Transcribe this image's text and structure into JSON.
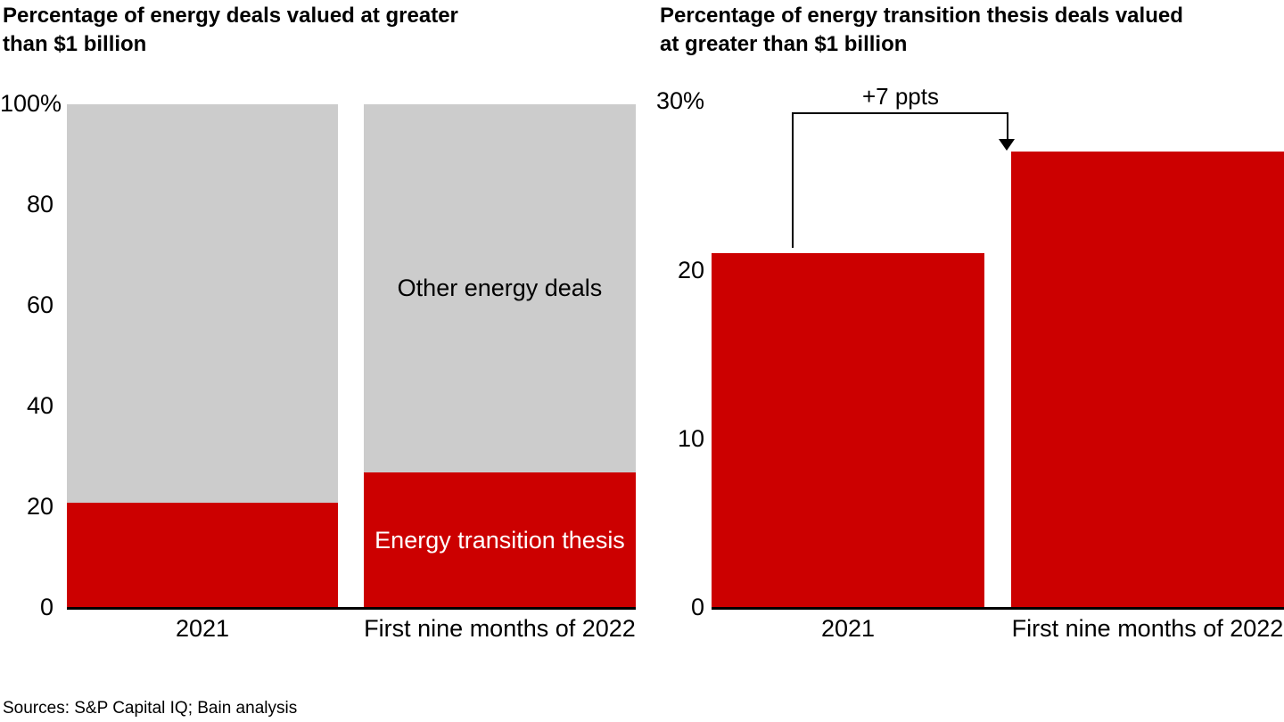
{
  "ui": {
    "left_chart": {
      "title": "Percentage of energy deals valued at greater\nthan $1 billion",
      "y_ticks": [
        "100%",
        "80",
        "60",
        "40",
        "20",
        "0"
      ],
      "x_labels": [
        "2021",
        "First nine months of 2022"
      ],
      "segment_labels": {
        "other": "Other energy deals",
        "transition": "Energy transition thesis"
      }
    },
    "right_chart": {
      "title": "Percentage of energy transition thesis deals valued\nat greater than $1 billion",
      "y_ticks": [
        "30%",
        "20",
        "10",
        "0"
      ],
      "x_labels": [
        "2021",
        "First nine months of 2022"
      ],
      "annotation": "+7 ppts"
    },
    "footer": "Sources: S&P Capital IQ; Bain analysis"
  },
  "colors": {
    "red": "#cc0000",
    "gray": "#cccccc",
    "axis": "#000000"
  },
  "chart_data": [
    {
      "type": "bar",
      "stacked": true,
      "title": "Percentage of energy deals valued at greater than $1 billion",
      "categories": [
        "2021",
        "First nine months of 2022"
      ],
      "series": [
        {
          "name": "Energy transition thesis",
          "values": [
            21,
            27
          ],
          "color": "#cc0000"
        },
        {
          "name": "Other energy deals",
          "values": [
            79,
            73
          ],
          "color": "#cccccc"
        }
      ],
      "xlabel": "",
      "ylabel": "",
      "ylim": [
        0,
        100
      ],
      "y_tick_step": 20,
      "grid": false,
      "legend": "labels-inside-bars"
    },
    {
      "type": "bar",
      "stacked": false,
      "title": "Percentage of energy transition thesis deals valued at greater than $1 billion",
      "categories": [
        "2021",
        "First nine months of 2022"
      ],
      "series": [
        {
          "name": "Energy transition thesis deals > $1B",
          "values": [
            21,
            27
          ],
          "color": "#cc0000"
        }
      ],
      "annotation": {
        "text": "+7 ppts",
        "from": "2021",
        "to": "First nine months of 2022"
      },
      "xlabel": "",
      "ylabel": "",
      "ylim": [
        0,
        30
      ],
      "y_tick_step": 10,
      "grid": false,
      "legend": "none"
    }
  ]
}
